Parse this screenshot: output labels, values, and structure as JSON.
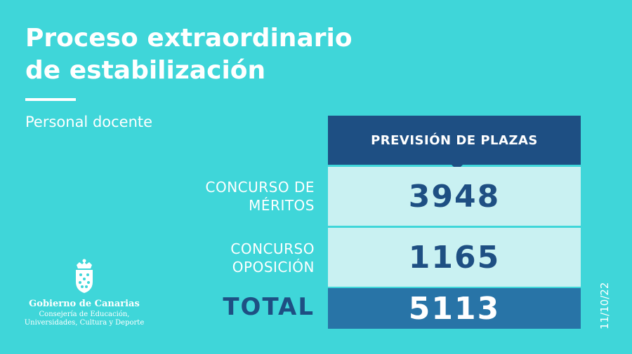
{
  "title_line1": "Proceso extraordinario",
  "title_line2": "de estabilización",
  "subtitle": "Personal docente",
  "table": {
    "header": "PREVISIÓN DE PLAZAS",
    "rows": [
      {
        "label_line1": "CONCURSO DE",
        "label_line2": "MÉRITOS",
        "value": "3948"
      },
      {
        "label_line1": "CONCURSO",
        "label_line2": "OPOSICIÓN",
        "value": "1165"
      }
    ],
    "total_label": "TOTAL",
    "total_value": "5113"
  },
  "logo": {
    "name": "Gobierno de Canarias",
    "department_line1": "Consejería de Educación,",
    "department_line2": "Universidades, Cultura y Deporte",
    "icon": "coat-of-arms-icon"
  },
  "date": "11/10/22",
  "colors": {
    "background": "#3fd6d9",
    "header": "#1e4f83",
    "row": "#c9f1f2",
    "total": "#2874a7"
  }
}
